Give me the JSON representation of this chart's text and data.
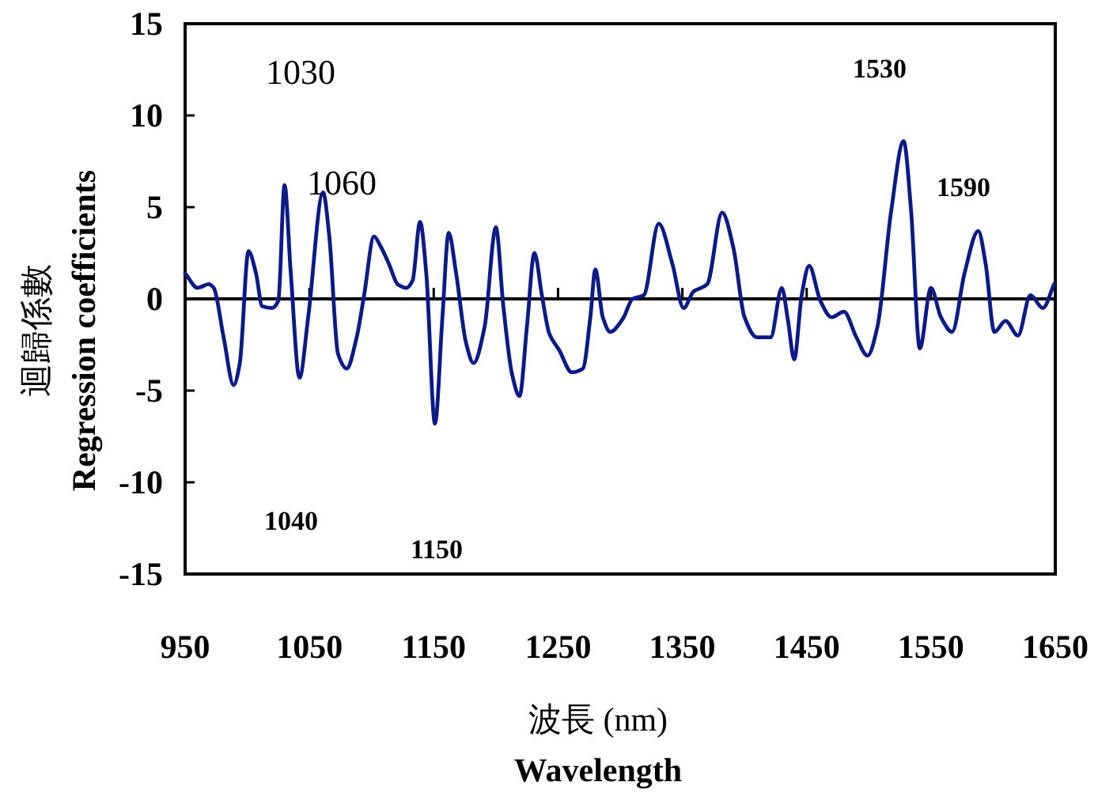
{
  "chart_data": {
    "type": "line",
    "xlabel": "波長 (nm)\nWavelength",
    "ylabel": "迴歸係數\nRegression coefficients",
    "xlim": [
      950,
      1650
    ],
    "ylim": [
      -15,
      15
    ],
    "xticks": [
      950,
      1050,
      1150,
      1250,
      1350,
      1450,
      1550,
      1650
    ],
    "yticks": [
      -15,
      -10,
      -5,
      0,
      5,
      10,
      15
    ],
    "marker": "none",
    "line_style": "solid",
    "ref_lines": [
      {
        "axis": "y",
        "value": 0,
        "color": "#000000"
      }
    ],
    "annotations": [
      "1030",
      "1060",
      "1040",
      "1150",
      "1530",
      "1590"
    ],
    "series": [
      {
        "color": "#0b1a8a",
        "x": [
          950,
          960,
          969,
          973,
          981,
          989,
          994,
          1001,
          1007,
          1012,
          1020,
          1025,
          1030,
          1035,
          1042,
          1049,
          1061,
          1066,
          1073,
          1080,
          1088,
          1094,
          1102,
          1107,
          1114,
          1121,
          1128,
          1133,
          1139,
          1144,
          1151,
          1157,
          1162,
          1168,
          1176,
          1182,
          1191,
          1200,
          1206,
          1213,
          1219,
          1225,
          1231,
          1237,
          1243,
          1251,
          1261,
          1270,
          1276,
          1280,
          1286,
          1292,
          1302,
          1310,
          1319,
          1331,
          1342,
          1351,
          1359,
          1370,
          1382,
          1391,
          1400,
          1410,
          1421,
          1430,
          1435,
          1440,
          1446,
          1452,
          1461,
          1470,
          1480,
          1490,
          1499,
          1507,
          1518,
          1528,
          1534,
          1541,
          1550,
          1558,
          1567,
          1577,
          1588,
          1594,
          1601,
          1610,
          1620,
          1630,
          1640,
          1649
        ],
        "values": [
          1.4,
          0.6,
          0.8,
          0.6,
          -2.1,
          -4.7,
          -3.5,
          2.6,
          1.4,
          -0.4,
          -0.5,
          -0.1,
          6.2,
          1.4,
          -4.3,
          -1.0,
          5.8,
          3.4,
          -3.0,
          -3.8,
          -2.1,
          0.2,
          3.4,
          2.9,
          1.9,
          0.8,
          0.6,
          1.0,
          4.2,
          1.4,
          -6.8,
          -1.0,
          3.6,
          1.4,
          -2.4,
          -3.5,
          -1.5,
          3.9,
          -0.4,
          -4.1,
          -5.3,
          -1.5,
          2.5,
          0.2,
          -1.9,
          -2.8,
          -4.0,
          -3.8,
          -1.0,
          1.6,
          -1.0,
          -1.8,
          -1.1,
          0.0,
          0.2,
          4.1,
          1.9,
          -0.5,
          0.4,
          0.8,
          4.7,
          2.8,
          -1.0,
          -2.1,
          -2.1,
          0.6,
          -1.2,
          -3.3,
          0.2,
          1.8,
          -0.1,
          -1.0,
          -0.7,
          -2.1,
          -3.1,
          -1.5,
          4.8,
          8.6,
          4.8,
          -2.7,
          0.6,
          -1.0,
          -1.8,
          1.4,
          3.7,
          1.9,
          -1.8,
          -1.2,
          -2.0,
          0.2,
          -0.5,
          0.8
        ]
      }
    ]
  }
}
